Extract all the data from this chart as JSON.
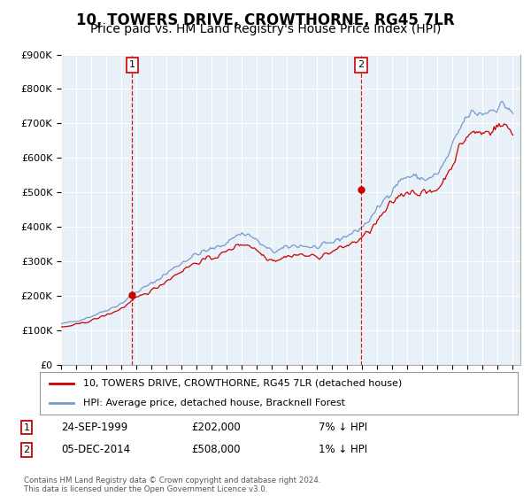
{
  "title": "10, TOWERS DRIVE, CROWTHORNE, RG45 7LR",
  "subtitle": "Price paid vs. HM Land Registry's House Price Index (HPI)",
  "title_fontsize": 12,
  "subtitle_fontsize": 10,
  "legend_label_red": "10, TOWERS DRIVE, CROWTHORNE, RG45 7LR (detached house)",
  "legend_label_blue": "HPI: Average price, detached house, Bracknell Forest",
  "annotation_label1": "24-SEP-1999",
  "annotation_price1": "£202,000",
  "annotation_hpi1": "7% ↓ HPI",
  "annotation_label2": "05-DEC-2014",
  "annotation_price2": "£508,000",
  "annotation_hpi2": "1% ↓ HPI",
  "footnote": "Contains HM Land Registry data © Crown copyright and database right 2024.\nThis data is licensed under the Open Government Licence v3.0.",
  "ylim": [
    0,
    900000
  ],
  "yticks": [
    0,
    100000,
    200000,
    300000,
    400000,
    500000,
    600000,
    700000,
    800000,
    900000
  ],
  "ytick_labels": [
    "£0",
    "£100K",
    "£200K",
    "£300K",
    "£400K",
    "£500K",
    "£600K",
    "£700K",
    "£800K",
    "£900K"
  ],
  "background_color": "#ffffff",
  "chart_bg_color": "#e8f0f8",
  "grid_color": "#ffffff",
  "line_color_red": "#cc0000",
  "line_color_blue": "#7799cc",
  "vline_color": "#cc0000",
  "marker_box_color": "#cc0000",
  "transaction1_x": 1999.73,
  "transaction1_y": 202000,
  "transaction2_x": 2014.92,
  "transaction2_y": 508000,
  "xlim_start": 1995.0,
  "xlim_end": 2025.5
}
